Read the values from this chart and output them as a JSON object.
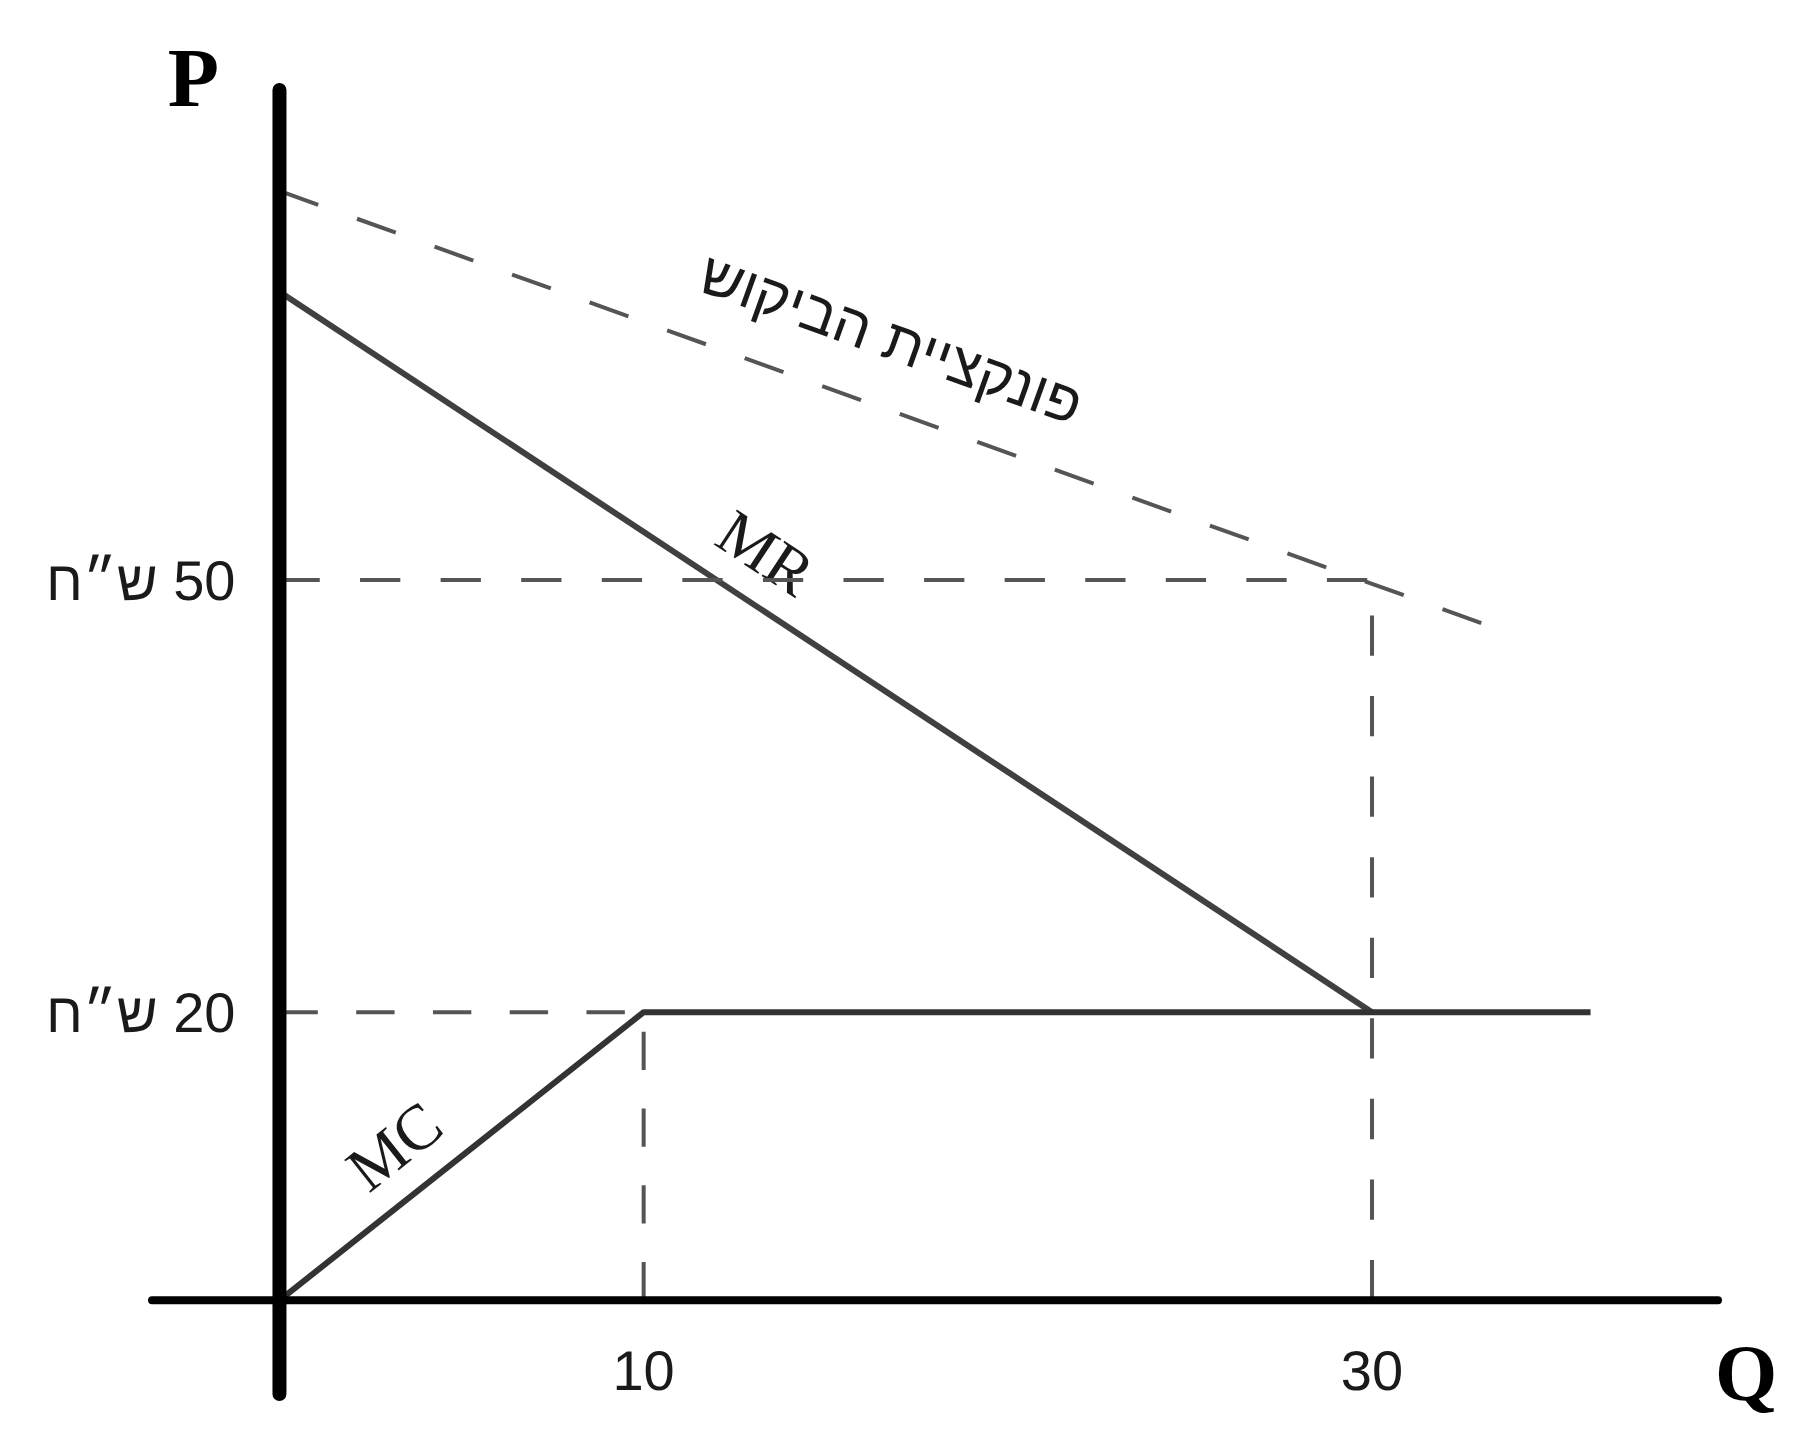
{
  "chart_data": {
    "type": "line",
    "xlabel": "Q",
    "ylabel": "P",
    "xlim": [
      -3.5,
      39.5
    ],
    "ylim": [
      -6.5,
      84
    ],
    "xticks": [
      10,
      30
    ],
    "yticks": [
      {
        "value": 20,
        "label": "20 ש״ח"
      },
      {
        "value": 50,
        "label": "50 ש״ח"
      }
    ],
    "series": [
      {
        "name": "פונקציית הביקוש",
        "color": "#555555",
        "line_style": "dashed",
        "x": [
          0,
          33
        ],
        "values": [
          77,
          47
        ]
      },
      {
        "name": "MR",
        "color": "#404040",
        "x": [
          0,
          30
        ],
        "values": [
          70,
          20
        ]
      },
      {
        "name": "MC",
        "color": "#333333",
        "x": [
          0,
          10,
          36
        ],
        "values": [
          0,
          20,
          20
        ]
      },
      {
        "color": "#555555",
        "line_style": "dashed",
        "x": [
          0,
          30,
          30
        ],
        "values": [
          50,
          50,
          0
        ]
      },
      {
        "color": "#555555",
        "line_style": "dashed",
        "x": [
          0,
          10,
          10
        ],
        "values": [
          20,
          20,
          0
        ]
      }
    ]
  }
}
